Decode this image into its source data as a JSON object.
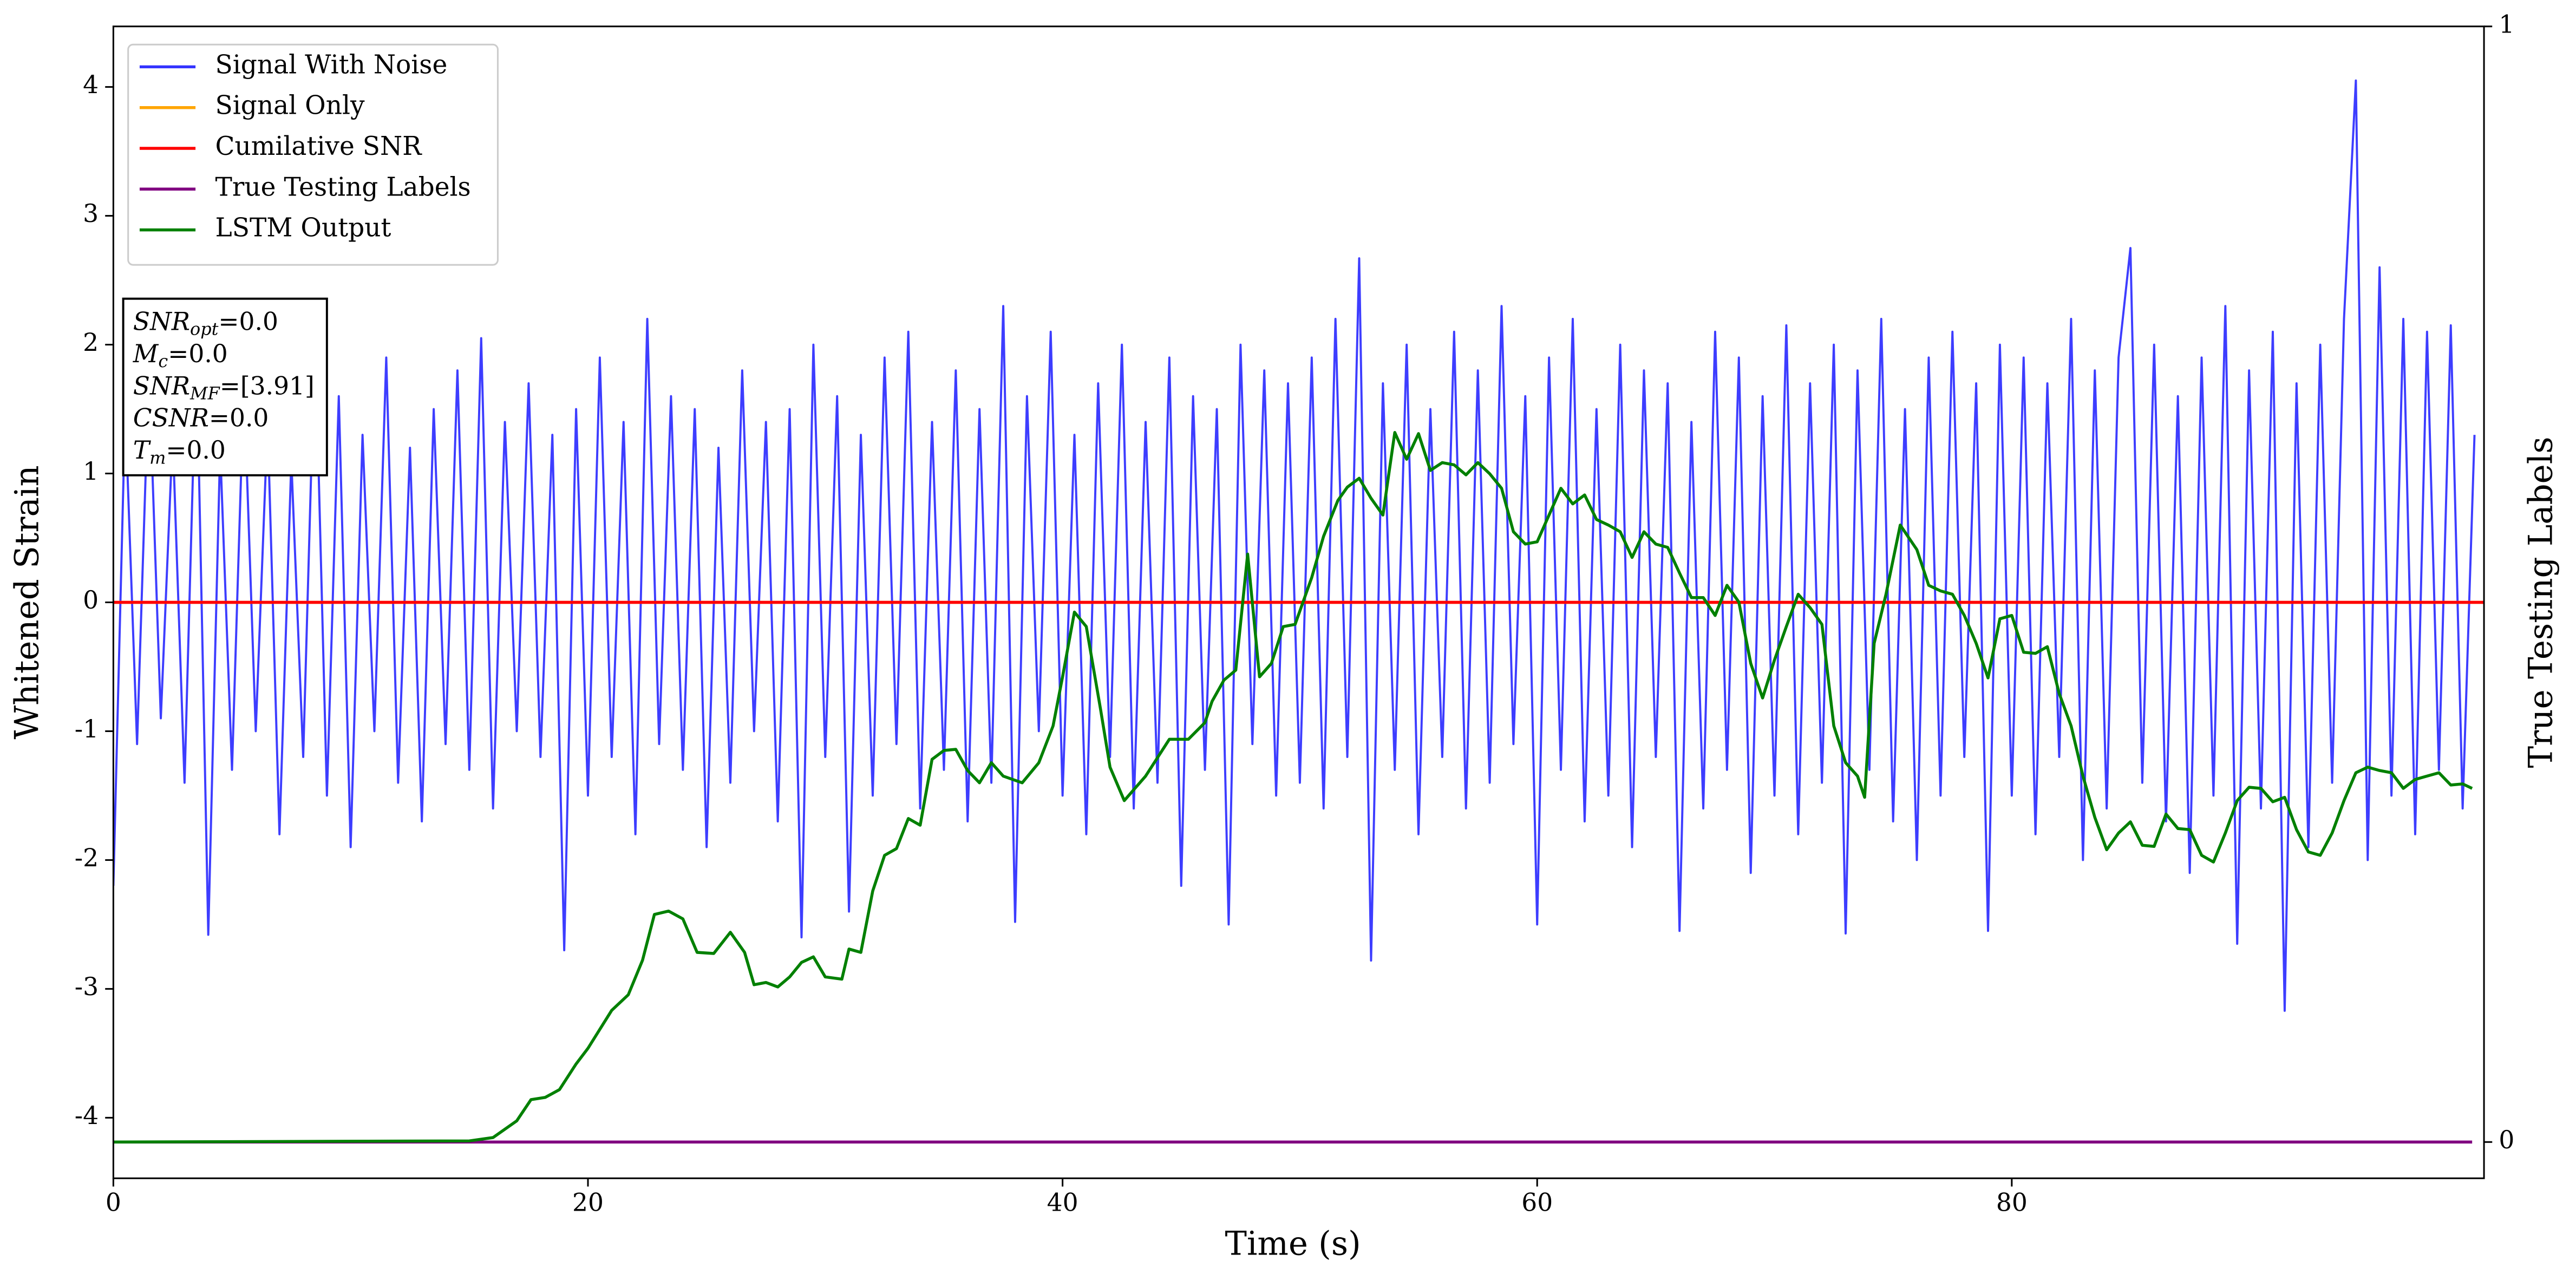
{
  "chart_data": {
    "type": "line",
    "xlabel": "Time (s)",
    "ylabel": "Whitened Strain",
    "y2label": "True Testing Labels",
    "xlim": [
      0,
      99.9
    ],
    "xticks": [
      0,
      20,
      40,
      60,
      80
    ],
    "ylim": [
      -4.47,
      4.47
    ],
    "yticks": [
      -4,
      -3,
      -2,
      -1,
      0,
      1,
      2,
      3,
      4
    ],
    "y2lim": [
      -0.0325,
      1.0
    ],
    "y2ticks": [
      0,
      1
    ],
    "legend": "upper left",
    "annotation": [
      [
        "SNR",
        "opt",
        "=0.0"
      ],
      [
        "M",
        "c",
        "=0.0"
      ],
      [
        "SNR",
        "MF",
        "=[3.91]"
      ],
      [
        "CSNR",
        "",
        "=0.0"
      ],
      [
        "T",
        "m",
        "=0.0"
      ]
    ],
    "series": [
      {
        "name": "Signal With Noise",
        "color": "#3333ff",
        "x": [
          0,
          0.5,
          1,
          1.5,
          2,
          2.5,
          3,
          3.5,
          4,
          4.5,
          5,
          5.5,
          6,
          6.5,
          7,
          7.5,
          8,
          8.5,
          9,
          9.5,
          10,
          10.5,
          11,
          11.5,
          12,
          12.5,
          13,
          13.5,
          14,
          14.5,
          15,
          15.5,
          16,
          16.5,
          17,
          17.5,
          18,
          18.5,
          19,
          19.5,
          20,
          20.5,
          21,
          21.5,
          22,
          22.5,
          23,
          23.5,
          24,
          24.5,
          25,
          25.5,
          26,
          26.5,
          27,
          27.5,
          28,
          28.5,
          29,
          29.5,
          30,
          30.5,
          31,
          31.5,
          32,
          32.5,
          33,
          33.5,
          34,
          34.5,
          35,
          35.5,
          36,
          36.5,
          37,
          37.5,
          38,
          38.5,
          39,
          39.5,
          40,
          40.5,
          41,
          41.5,
          42,
          42.5,
          43,
          43.5,
          44,
          44.5,
          45,
          45.5,
          46,
          46.5,
          47,
          47.5,
          48,
          48.5,
          49,
          49.5,
          50,
          50.5,
          51,
          51.5,
          52,
          52.5,
          53,
          53.5,
          54,
          54.5,
          55,
          55.5,
          56,
          56.5,
          57,
          57.5,
          58,
          58.5,
          59,
          59.5,
          60,
          60.5,
          61,
          61.5,
          62,
          62.5,
          63,
          63.5,
          64,
          64.5,
          65,
          65.5,
          66,
          66.5,
          67,
          67.5,
          68,
          68.5,
          69,
          69.5,
          70,
          70.5,
          71,
          71.5,
          72,
          72.5,
          73,
          73.5,
          74,
          74.5,
          75,
          75.5,
          76,
          76.5,
          77,
          77.5,
          78,
          78.5,
          79,
          79.5,
          80,
          80.5,
          81,
          81.5,
          82,
          82.5,
          83,
          83.5,
          84,
          84.5,
          85,
          85.5,
          86,
          86.5,
          87,
          87.5,
          88,
          88.5,
          89,
          89.5,
          90,
          90.5,
          91,
          91.5,
          92,
          92.5,
          93,
          93.5,
          94,
          94.5,
          95,
          95.5,
          96,
          96.5,
          97,
          97.5,
          98,
          98.5,
          99,
          99.5
        ],
        "values": [
          -2.2,
          1.5,
          -1.1,
          1.8,
          -0.9,
          1.3,
          -1.4,
          2.0,
          -2.58,
          1.2,
          -1.3,
          1.7,
          -1.0,
          1.4,
          -1.8,
          1.1,
          -1.2,
          2.1,
          -1.5,
          1.6,
          -1.9,
          1.3,
          -1.0,
          1.9,
          -1.4,
          1.2,
          -1.7,
          1.5,
          -1.1,
          1.8,
          -1.3,
          2.05,
          -1.6,
          1.4,
          -1.0,
          1.7,
          -1.2,
          1.3,
          -2.7,
          1.5,
          -1.5,
          1.9,
          -1.2,
          1.4,
          -1.8,
          2.2,
          -1.1,
          1.6,
          -1.3,
          1.5,
          -1.9,
          1.2,
          -1.4,
          1.8,
          -1.0,
          1.4,
          -1.7,
          1.5,
          -2.6,
          2.0,
          -1.2,
          1.6,
          -2.4,
          1.3,
          -1.5,
          1.9,
          -1.1,
          2.1,
          -1.6,
          1.4,
          -1.3,
          1.8,
          -1.7,
          1.5,
          -1.4,
          2.3,
          -2.48,
          1.6,
          -1.0,
          2.1,
          -1.5,
          1.3,
          -1.8,
          1.7,
          -1.2,
          2.0,
          -1.6,
          1.4,
          -1.4,
          1.9,
          -2.2,
          1.6,
          -1.3,
          1.5,
          -2.5,
          2.0,
          -1.1,
          1.8,
          -1.5,
          1.7,
          -1.4,
          1.9,
          -1.6,
          2.2,
          -1.2,
          2.67,
          -2.78,
          1.7,
          -1.3,
          2.0,
          -1.8,
          1.5,
          -1.2,
          2.1,
          -1.6,
          1.8,
          -1.4,
          2.3,
          -1.1,
          1.6,
          -2.5,
          1.9,
          -1.3,
          2.2,
          -1.7,
          1.5,
          -1.5,
          2.0,
          -1.9,
          1.8,
          -1.2,
          1.7,
          -2.55,
          1.4,
          -1.6,
          2.1,
          -1.3,
          1.9,
          -2.1,
          1.6,
          -1.5,
          2.15,
          -1.8,
          1.7,
          -1.4,
          2.0,
          -2.57,
          1.8,
          -1.3,
          2.2,
          -1.7,
          1.5,
          -2.0,
          1.9,
          -1.5,
          2.1,
          -1.2,
          1.7,
          -2.55,
          2.0,
          -1.5,
          1.9,
          -1.8,
          1.7,
          -1.2,
          2.2,
          -2.0,
          1.8,
          -1.6,
          1.9,
          2.75,
          -1.4,
          2.0,
          -1.7,
          1.6,
          -2.1,
          1.9,
          -1.5,
          2.3,
          -2.65,
          1.8,
          -1.6,
          2.1,
          -3.17,
          1.7,
          -1.9,
          2.0,
          -1.4,
          2.2,
          4.05,
          -2.0,
          2.6,
          -1.5,
          2.2,
          -1.8,
          2.1,
          -1.3,
          2.15,
          -1.6,
          1.3
        ]
      },
      {
        "name": "Signal Only",
        "color": "#ffa500",
        "x": [
          0,
          99.9
        ],
        "values": [
          0,
          0
        ]
      },
      {
        "name": "Cumilative SNR",
        "color": "#ff0000",
        "x": [
          0,
          99.9
        ],
        "values": [
          0,
          0
        ]
      },
      {
        "name": "True Testing Labels",
        "color": "#800080",
        "axis": "y2",
        "x": [
          0,
          99.4
        ],
        "values": [
          0,
          0
        ]
      },
      {
        "name": "LSTM Output",
        "color": "#008000",
        "axis": "y2",
        "x": [
          0,
          15,
          16,
          17,
          17.6,
          18.2,
          18.8,
          19.5,
          20,
          21,
          21.7,
          22.3,
          22.8,
          23.4,
          24,
          24.6,
          25.3,
          26,
          26.6,
          27,
          27.5,
          28,
          28.5,
          29,
          29.5,
          30,
          30.7,
          31,
          31.5,
          32,
          32.5,
          33,
          33.5,
          34,
          34.5,
          35,
          35.5,
          36,
          36.5,
          37,
          37.5,
          38.3,
          39,
          39.6,
          40,
          40.5,
          41,
          41.6,
          42,
          42.6,
          43.5,
          44.5,
          45.3,
          46,
          46.3,
          46.8,
          47.3,
          47.8,
          48.3,
          48.8,
          49.3,
          49.8,
          50.5,
          51,
          51.6,
          52,
          52.5,
          53,
          53.5,
          54,
          54.5,
          55,
          55.5,
          56,
          56.5,
          57,
          57.5,
          58,
          58.5,
          59,
          59.5,
          60,
          60.5,
          61,
          61.5,
          62,
          62.5,
          63,
          63.5,
          64,
          64.5,
          65,
          65.5,
          66,
          66.5,
          67,
          67.5,
          68,
          68.5,
          69,
          69.5,
          70,
          70.5,
          71,
          71.5,
          72,
          72.5,
          73,
          73.5,
          73.8,
          74.2,
          74.7,
          75.3,
          76,
          76.5,
          77,
          77.5,
          78,
          78.5,
          79,
          79.5,
          80,
          80.5,
          81,
          81.5,
          82,
          82.5,
          83,
          83.5,
          84,
          84.5,
          85,
          85.5,
          86,
          86.5,
          87,
          87.5,
          88,
          88.5,
          89,
          89.5,
          90,
          90.5,
          91,
          91.5,
          92,
          92.5,
          93,
          93.5,
          94,
          94.5,
          95,
          95.5,
          96,
          96.5,
          97,
          97.5,
          98,
          98.5,
          99,
          99.4
        ],
        "values": [
          0,
          0.001,
          0.004,
          0.019,
          0.038,
          0.04,
          0.047,
          0.07,
          0.084,
          0.118,
          0.132,
          0.163,
          0.204,
          0.207,
          0.2,
          0.17,
          0.169,
          0.188,
          0.17,
          0.141,
          0.143,
          0.139,
          0.148,
          0.161,
          0.166,
          0.148,
          0.146,
          0.173,
          0.17,
          0.225,
          0.257,
          0.263,
          0.29,
          0.284,
          0.343,
          0.351,
          0.352,
          0.333,
          0.322,
          0.34,
          0.328,
          0.322,
          0.34,
          0.373,
          0.417,
          0.475,
          0.462,
          0.388,
          0.336,
          0.306,
          0.328,
          0.361,
          0.361,
          0.376,
          0.395,
          0.414,
          0.423,
          0.527,
          0.417,
          0.429,
          0.462,
          0.464,
          0.506,
          0.543,
          0.575,
          0.587,
          0.595,
          0.577,
          0.562,
          0.636,
          0.612,
          0.635,
          0.602,
          0.609,
          0.607,
          0.598,
          0.609,
          0.599,
          0.586,
          0.547,
          0.536,
          0.538,
          0.562,
          0.586,
          0.572,
          0.58,
          0.558,
          0.553,
          0.547,
          0.524,
          0.547,
          0.536,
          0.533,
          0.51,
          0.488,
          0.488,
          0.472,
          0.499,
          0.484,
          0.429,
          0.398,
          0.432,
          0.462,
          0.491,
          0.479,
          0.464,
          0.373,
          0.34,
          0.328,
          0.309,
          0.447,
          0.491,
          0.553,
          0.531,
          0.499,
          0.494,
          0.491,
          0.472,
          0.447,
          0.416,
          0.469,
          0.472,
          0.439,
          0.438,
          0.444,
          0.402,
          0.373,
          0.328,
          0.291,
          0.262,
          0.277,
          0.287,
          0.266,
          0.265,
          0.294,
          0.281,
          0.28,
          0.257,
          0.251,
          0.277,
          0.306,
          0.318,
          0.317,
          0.305,
          0.309,
          0.28,
          0.26,
          0.257,
          0.277,
          0.306,
          0.331,
          0.336,
          0.333,
          0.331,
          0.317,
          0.325,
          0.328,
          0.331,
          0.32,
          0.321,
          0.317
        ]
      }
    ]
  }
}
